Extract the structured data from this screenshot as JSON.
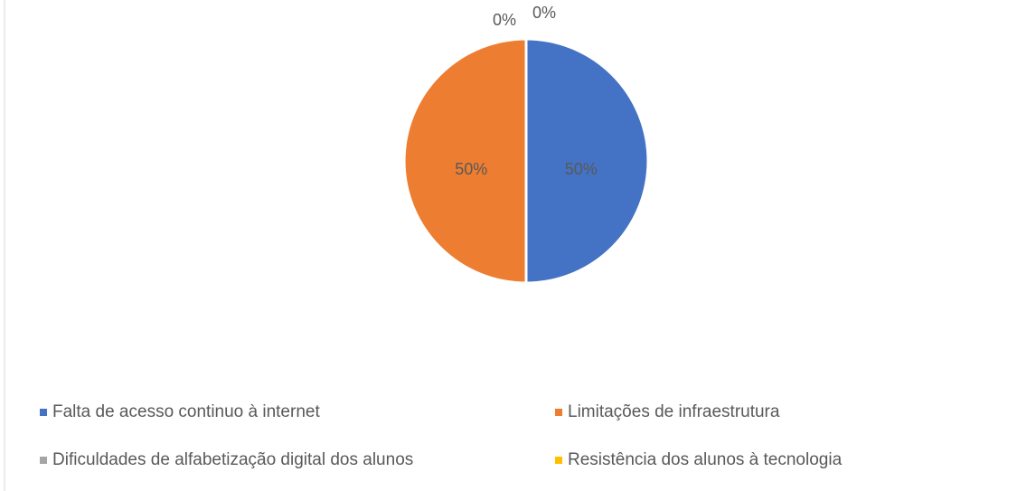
{
  "chart_data": {
    "type": "pie",
    "categories": [
      "Falta de acesso continuo à internet",
      "Limitações de infraestrutura",
      "Dificuldades de alfabetização digital dos alunos",
      "Resistência dos alunos à tecnologia"
    ],
    "values": [
      50,
      50,
      0,
      0
    ],
    "value_labels": [
      "50%",
      "50%",
      "0%",
      "0%"
    ],
    "colors": [
      "#4472c4",
      "#ed7d31",
      "#a5a5a5",
      "#ffc000"
    ],
    "legend": "bottom"
  }
}
